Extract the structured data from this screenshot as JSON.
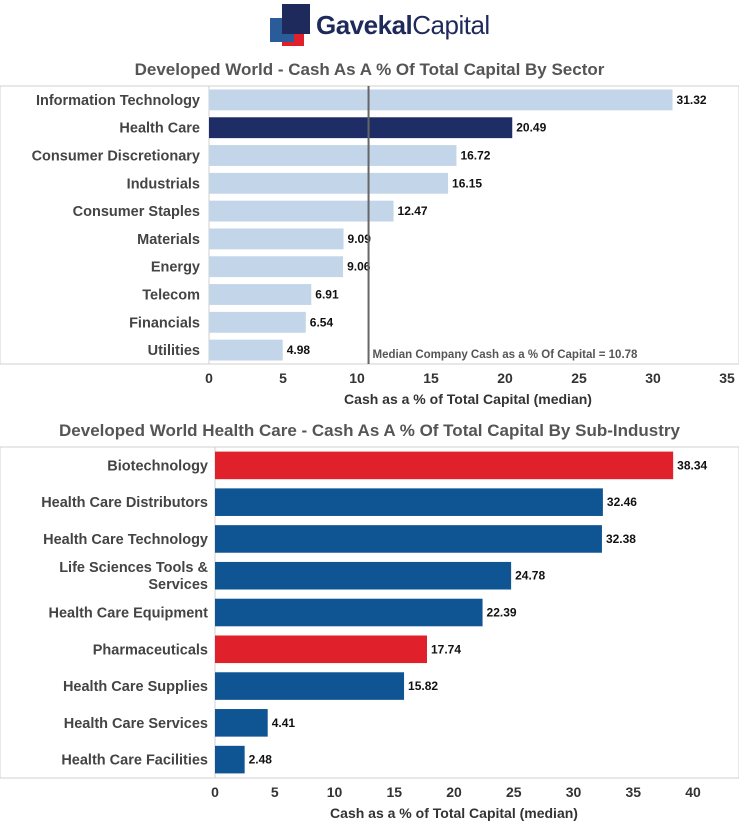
{
  "brand": {
    "name_bold": "Gavekal",
    "name_regular": "Capital",
    "colors": {
      "navy": "#1f2a5c",
      "red": "#e0202a",
      "blue": "#2a5c9a"
    }
  },
  "chart_data": [
    {
      "type": "bar",
      "orientation": "horizontal",
      "title": "Developed World - Cash As A % Of Total Capital By Sector",
      "xlabel": "Cash as a % of Total Capital (median)",
      "ylabel": "",
      "xlim": [
        0,
        35
      ],
      "xticks": [
        0,
        5,
        10,
        15,
        20,
        25,
        30,
        35
      ],
      "categories": [
        "Information Technology",
        "Health Care",
        "Consumer Discretionary",
        "Industrials",
        "Consumer Staples",
        "Materials",
        "Energy",
        "Telecom",
        "Financials",
        "Utilities"
      ],
      "values": [
        31.32,
        20.49,
        16.72,
        16.15,
        12.47,
        9.09,
        9.06,
        6.91,
        6.54,
        4.98
      ],
      "value_labels": [
        "31.32",
        "20.49",
        "16.72",
        "16.15",
        "12.47",
        "9.09",
        "9.06",
        "6.91",
        "6.54",
        "4.98"
      ],
      "bar_colors": [
        "#c3d5e8",
        "#1f2d66",
        "#c3d5e8",
        "#c3d5e8",
        "#c3d5e8",
        "#c3d5e8",
        "#c3d5e8",
        "#c3d5e8",
        "#c3d5e8",
        "#c3d5e8"
      ],
      "reference_line": {
        "value": 10.78,
        "label": "Median Company Cash as a % Of Capital = 10.78",
        "color": "#666666"
      },
      "grid": false
    },
    {
      "type": "bar",
      "orientation": "horizontal",
      "title": "Developed World Health Care - Cash As A % Of Total Capital By Sub-Industry",
      "xlabel": "Cash as a % of Total Capital (median)",
      "ylabel": "",
      "xlim": [
        0,
        40
      ],
      "xticks": [
        0,
        5,
        10,
        15,
        20,
        25,
        30,
        35,
        40
      ],
      "categories": [
        "Biotechnology",
        "Health Care Distributors",
        "Health Care Technology",
        "Life Sciences Tools & Services",
        "Health Care Equipment",
        "Pharmaceuticals",
        "Health Care Supplies",
        "Health Care Services",
        "Health Care Facilities"
      ],
      "category_lines": [
        [
          "Biotechnology"
        ],
        [
          "Health Care Distributors"
        ],
        [
          "Health Care Technology"
        ],
        [
          "Life Sciences Tools &",
          "Services"
        ],
        [
          "Health Care Equipment"
        ],
        [
          "Pharmaceuticals"
        ],
        [
          "Health Care Supplies"
        ],
        [
          "Health Care Services"
        ],
        [
          "Health Care Facilities"
        ]
      ],
      "values": [
        38.34,
        32.46,
        32.38,
        24.78,
        22.39,
        17.74,
        15.82,
        4.41,
        2.48
      ],
      "value_labels": [
        "38.34",
        "32.46",
        "32.38",
        "24.78",
        "22.39",
        "17.74",
        "15.82",
        "4.41",
        "2.48"
      ],
      "bar_colors": [
        "#e0202a",
        "#0f5593",
        "#0f5593",
        "#0f5593",
        "#0f5593",
        "#e0202a",
        "#0f5593",
        "#0f5593",
        "#0f5593"
      ],
      "grid": false
    }
  ]
}
